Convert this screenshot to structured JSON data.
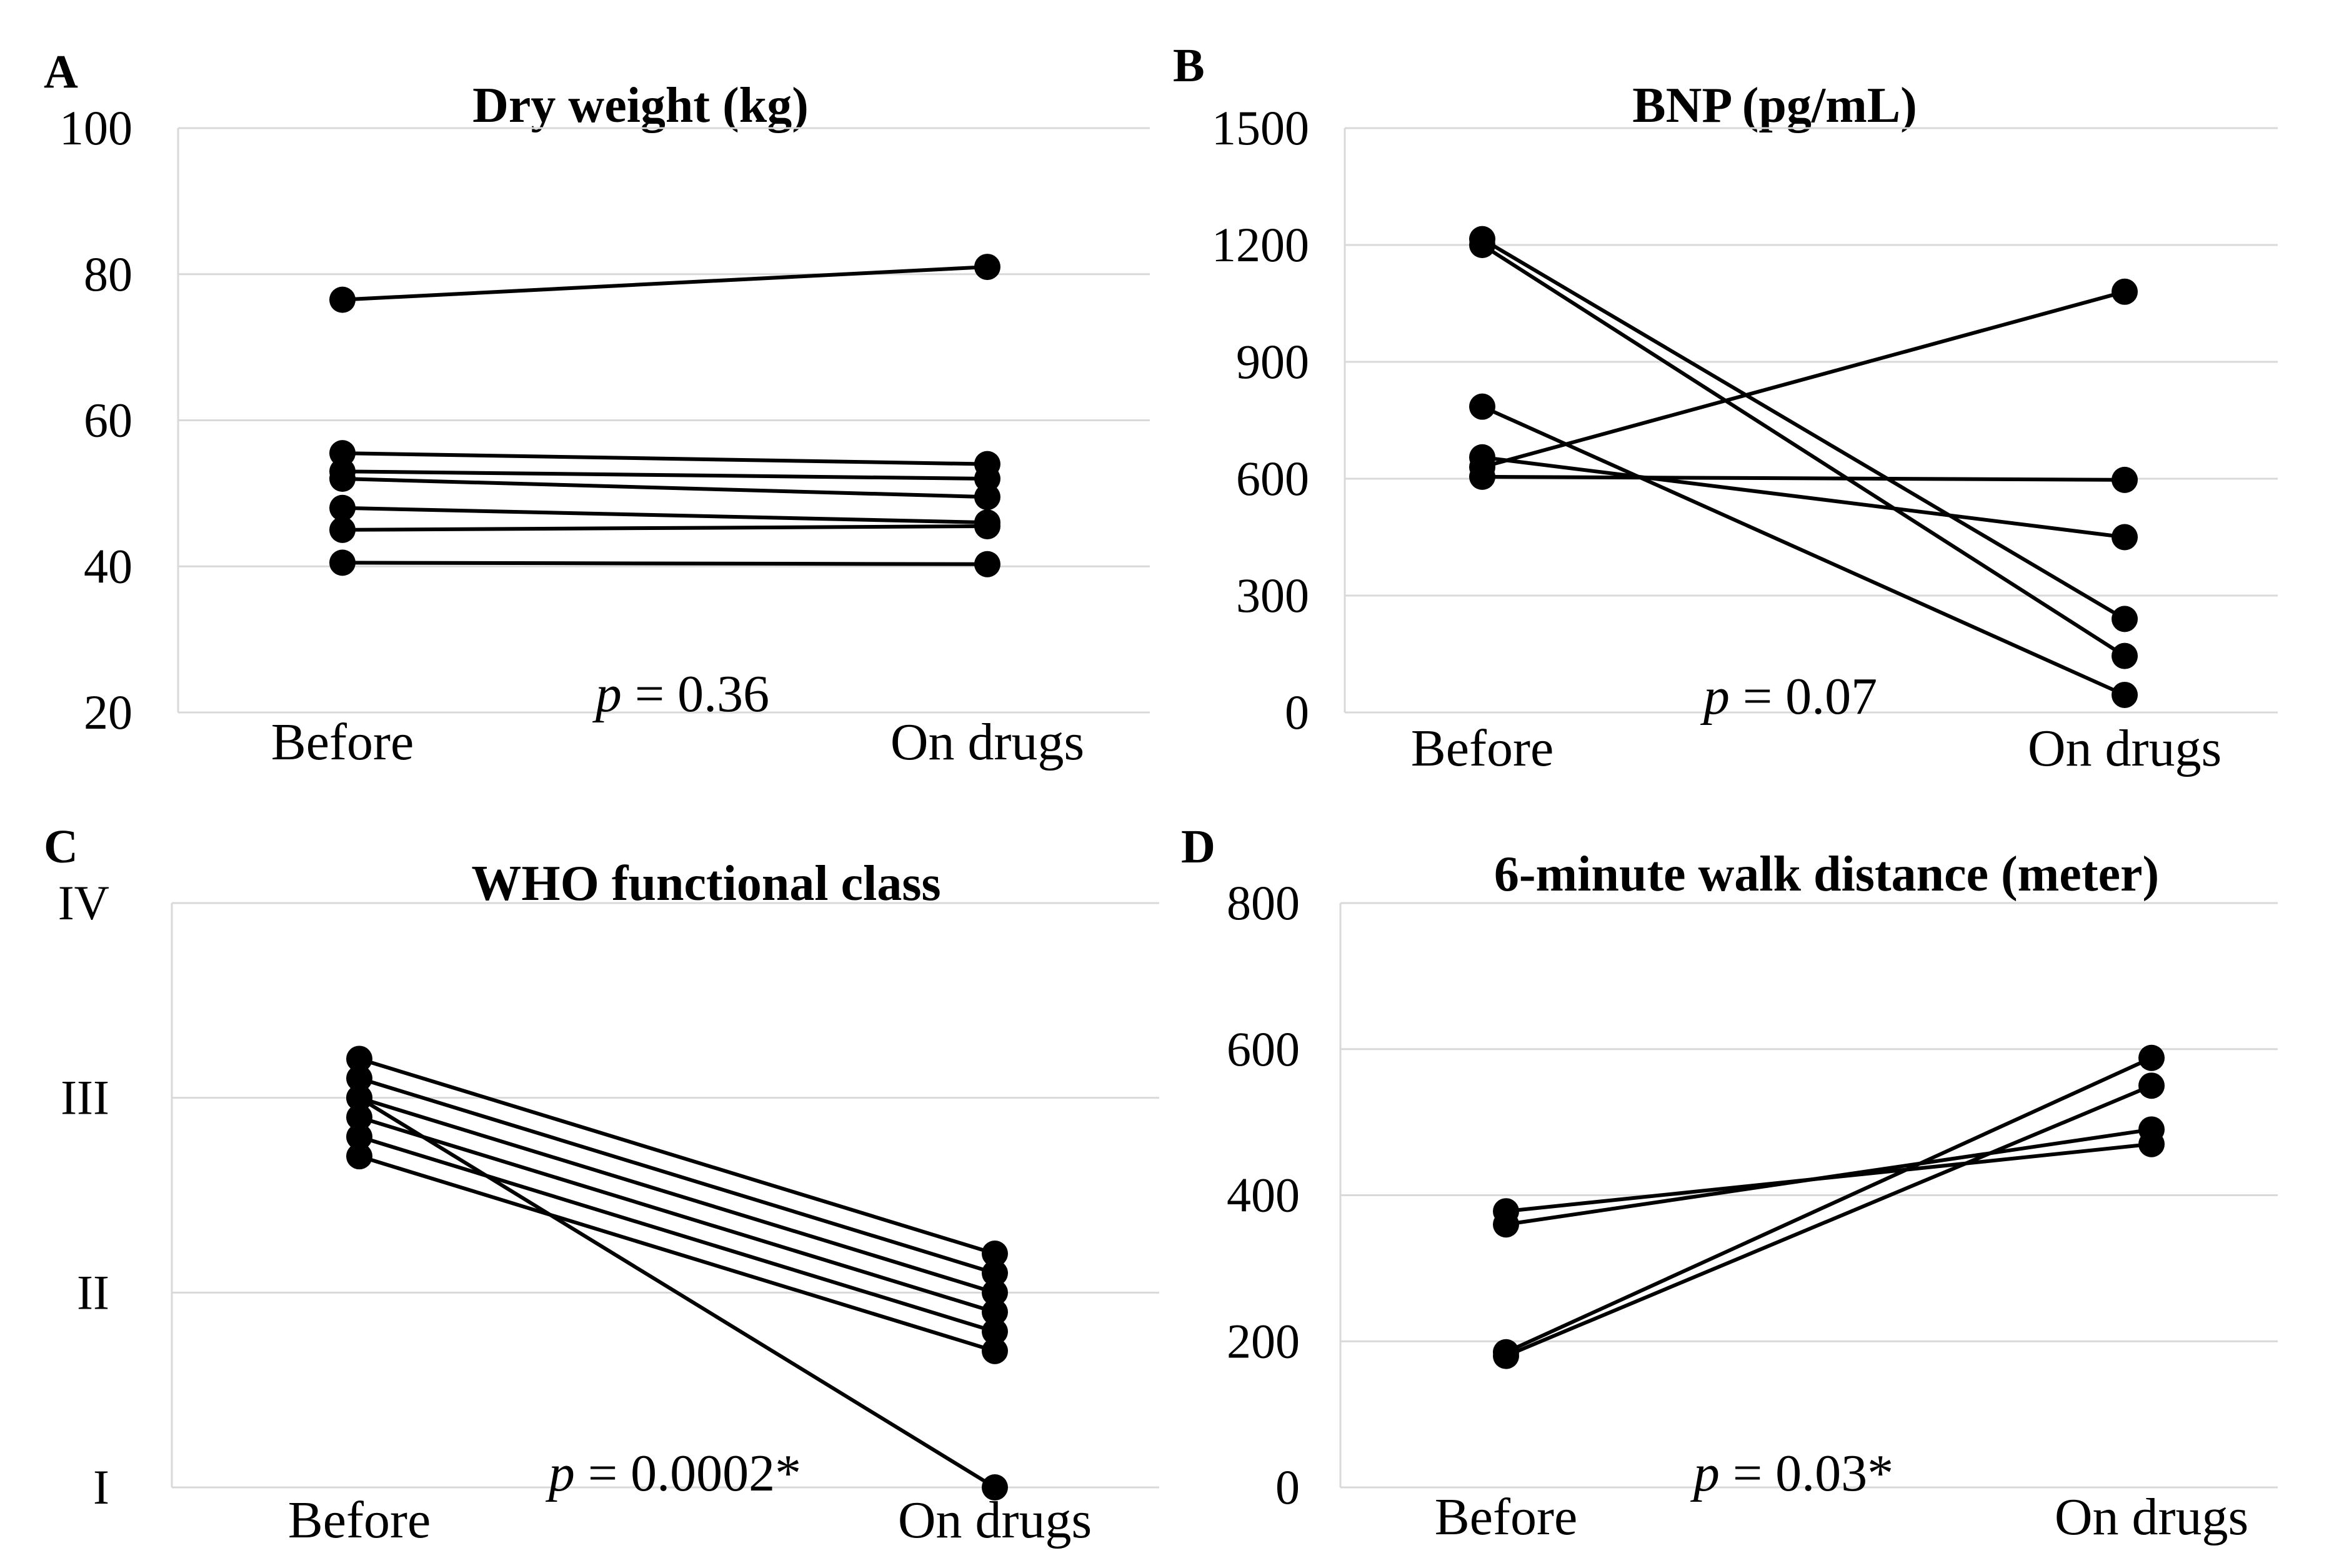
{
  "chart_data": [
    {
      "panel": "A",
      "type": "line",
      "title": "Dry weight (kg)",
      "categories": [
        "Before",
        "On drugs"
      ],
      "ylim": [
        20,
        100
      ],
      "yticks": [
        "20",
        "40",
        "60",
        "80",
        "100"
      ],
      "ytick_values": [
        20,
        40,
        60,
        80,
        100
      ],
      "annotation_italic": "p",
      "annotation_rest": " = 0.36",
      "series": [
        {
          "values": [
            76.5,
            81.0
          ]
        },
        {
          "values": [
            55.5,
            54.0
          ]
        },
        {
          "values": [
            53.0,
            52.0
          ]
        },
        {
          "values": [
            52.0,
            49.5
          ]
        },
        {
          "values": [
            48.0,
            46.0
          ]
        },
        {
          "values": [
            45.0,
            45.5
          ]
        },
        {
          "values": [
            40.5,
            40.3
          ]
        }
      ]
    },
    {
      "panel": "B",
      "type": "line",
      "title": "BNP (pg/mL)",
      "categories": [
        "Before",
        "On drugs"
      ],
      "ylim": [
        0,
        1500
      ],
      "yticks": [
        "0",
        "300",
        "600",
        "900",
        "1200",
        "1500"
      ],
      "ytick_values": [
        0,
        300,
        600,
        900,
        1200,
        1500
      ],
      "annotation_italic": "p",
      "annotation_rest": " = 0.07",
      "series": [
        {
          "values": [
            1215,
            240
          ]
        },
        {
          "values": [
            1200,
            145
          ]
        },
        {
          "values": [
            785,
            45
          ]
        },
        {
          "values": [
            655,
            450
          ]
        },
        {
          "values": [
            630,
            1080
          ]
        },
        {
          "values": [
            605,
            597
          ]
        }
      ]
    },
    {
      "panel": "C",
      "type": "line",
      "title": "WHO functional class",
      "categories": [
        "Before",
        "On drugs"
      ],
      "ylim": [
        1,
        4
      ],
      "yticks": [
        "I",
        "II",
        "III",
        "IV"
      ],
      "ytick_values": [
        1,
        2,
        3,
        4
      ],
      "annotation_italic": "p",
      "annotation_rest": " = 0.0002*",
      "series": [
        {
          "values": [
            3.2,
            2.2
          ]
        },
        {
          "values": [
            3.1,
            2.1
          ]
        },
        {
          "values": [
            3.0,
            2.0
          ]
        },
        {
          "values": [
            2.9,
            1.9
          ]
        },
        {
          "values": [
            2.8,
            1.8
          ]
        },
        {
          "values": [
            2.7,
            1.7
          ]
        },
        {
          "values": [
            3.0,
            1.0
          ]
        }
      ]
    },
    {
      "panel": "D",
      "type": "line",
      "title": "6-minute walk distance (meter)",
      "categories": [
        "Before",
        "On drugs"
      ],
      "ylim": [
        0,
        800
      ],
      "yticks": [
        "0",
        "200",
        "400",
        "600",
        "800"
      ],
      "ytick_values": [
        0,
        200,
        400,
        600,
        800
      ],
      "annotation_italic": "p",
      "annotation_rest": " = 0.03*",
      "series": [
        {
          "values": [
            378,
            470
          ]
        },
        {
          "values": [
            360,
            490
          ]
        },
        {
          "values": [
            185,
            588
          ]
        },
        {
          "values": [
            180,
            550
          ]
        }
      ]
    }
  ]
}
